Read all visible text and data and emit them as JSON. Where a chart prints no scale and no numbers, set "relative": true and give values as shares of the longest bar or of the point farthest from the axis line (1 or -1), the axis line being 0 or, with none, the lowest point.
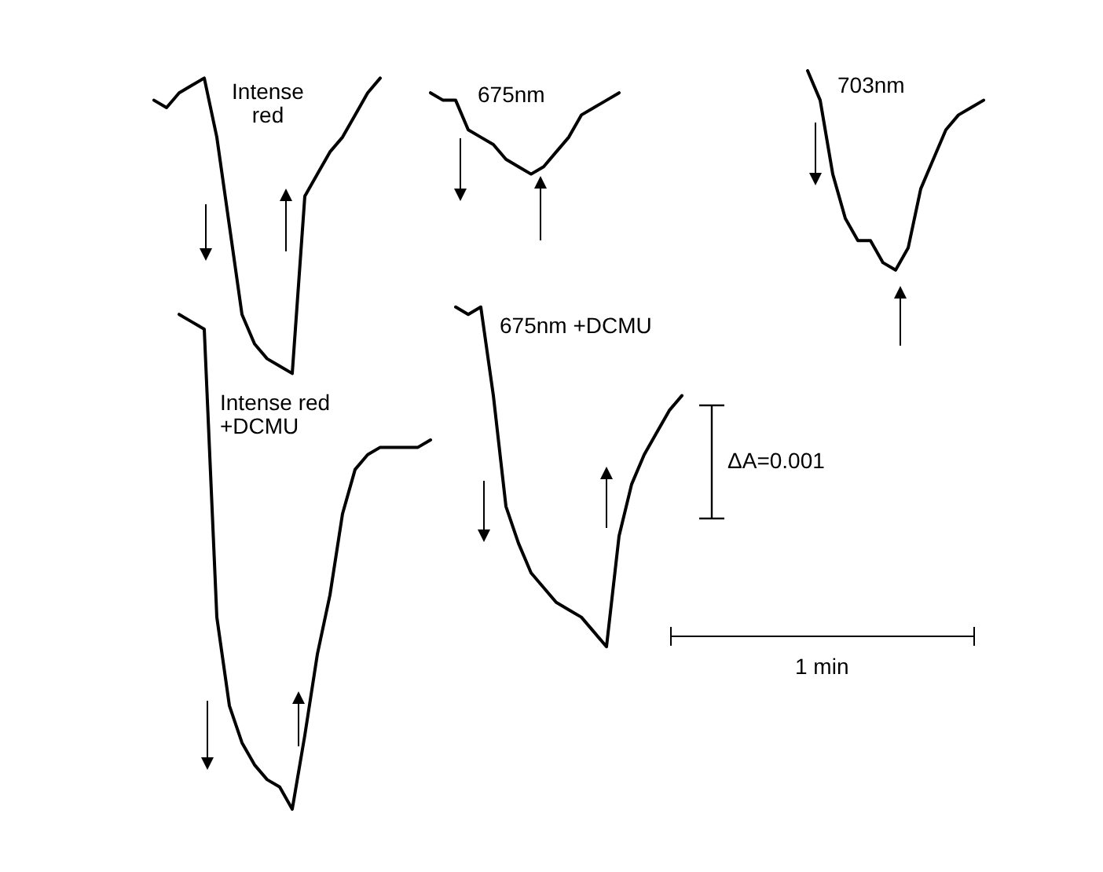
{
  "chart_data": {
    "type": "line",
    "relative": true,
    "tick_labels": false,
    "grid": false,
    "legend": false,
    "marker": "none",
    "line_style": "solid",
    "categories": [
      null,
      null,
      null,
      null,
      null,
      null,
      null,
      null,
      null,
      null,
      null,
      null,
      null,
      null,
      null,
      null,
      null,
      null,
      null,
      null,
      null,
      null,
      null,
      null,
      null,
      null,
      null,
      null,
      null,
      null,
      null,
      null,
      null,
      null,
      null,
      null,
      null,
      null,
      null,
      null,
      null,
      null,
      null,
      null,
      null,
      null,
      null,
      null,
      null,
      null,
      null,
      null,
      null,
      null,
      null,
      null,
      null,
      null,
      null,
      null,
      null,
      null,
      null,
      null,
      null,
      null,
      null,
      null,
      null
    ],
    "series": [
      {
        "name": "Intense red",
        "color": "#000000",
        "values": [
          null,
          0.96,
          0.95,
          0.97,
          0.98,
          0.99,
          0.91,
          0.79,
          0.67,
          0.63,
          0.61,
          0.6,
          0.59,
          0.83,
          0.86,
          0.89,
          0.91,
          0.94,
          0.97,
          0.99,
          null,
          null,
          null,
          null,
          null,
          null,
          null,
          null,
          null,
          null,
          null,
          null,
          null,
          null,
          null,
          null,
          null,
          null,
          null,
          null,
          null,
          null,
          null,
          null,
          null,
          null,
          null,
          null,
          null,
          null,
          null,
          null,
          null,
          null,
          null,
          null,
          null,
          null,
          null,
          null,
          null,
          null,
          null,
          null,
          null,
          null,
          null,
          null,
          null
        ]
      },
      {
        "name": "675nm",
        "color": "#000000",
        "values": [
          null,
          null,
          null,
          null,
          null,
          null,
          null,
          null,
          null,
          null,
          null,
          null,
          null,
          null,
          null,
          null,
          null,
          null,
          null,
          null,
          null,
          null,
          null,
          0.97,
          0.96,
          0.96,
          0.92,
          0.91,
          0.9,
          0.88,
          0.87,
          0.86,
          0.87,
          0.89,
          0.91,
          0.94,
          0.95,
          0.96,
          0.97,
          null,
          null,
          null,
          null,
          null,
          null,
          null,
          null,
          null,
          null,
          null,
          null,
          null,
          null,
          null,
          null,
          null,
          null,
          null,
          null,
          null,
          null,
          null,
          null,
          null,
          null,
          null,
          null,
          null,
          null
        ]
      },
      {
        "name": "703nm",
        "color": "#000000",
        "values": [
          null,
          null,
          null,
          null,
          null,
          null,
          null,
          null,
          null,
          null,
          null,
          null,
          null,
          null,
          null,
          null,
          null,
          null,
          null,
          null,
          null,
          null,
          null,
          null,
          null,
          null,
          null,
          null,
          null,
          null,
          null,
          null,
          null,
          null,
          null,
          null,
          null,
          null,
          null,
          null,
          null,
          null,
          null,
          null,
          null,
          null,
          null,
          null,
          null,
          null,
          null,
          null,
          null,
          1.0,
          0.96,
          0.86,
          0.8,
          0.77,
          0.77,
          0.74,
          0.73,
          0.76,
          0.84,
          0.88,
          0.92,
          0.94,
          0.95,
          0.96,
          null
        ]
      },
      {
        "name": "Intense red +DCMU",
        "color": "#000000",
        "values": [
          null,
          null,
          null,
          0.67,
          0.66,
          0.65,
          0.26,
          0.14,
          0.09,
          0.06,
          0.04,
          0.03,
          0,
          0.1,
          0.21,
          0.29,
          0.4,
          0.46,
          0.48,
          0.49,
          0.49,
          0.49,
          0.49,
          0.5,
          null,
          null,
          null,
          null,
          null,
          null,
          null,
          null,
          null,
          null,
          null,
          null,
          null,
          null,
          null,
          null,
          null,
          null,
          null,
          null,
          null,
          null,
          null,
          null,
          null,
          null,
          null,
          null,
          null,
          null,
          null,
          null,
          null,
          null,
          null,
          null,
          null,
          null,
          null,
          null,
          null,
          null,
          null,
          null,
          null
        ]
      },
      {
        "name": "675nm +DCMU",
        "color": "#000000",
        "values": [
          null,
          null,
          null,
          null,
          null,
          null,
          null,
          null,
          null,
          null,
          null,
          null,
          null,
          null,
          null,
          null,
          null,
          null,
          null,
          null,
          null,
          null,
          null,
          null,
          null,
          0.68,
          0.67,
          0.68,
          0.56,
          0.41,
          0.36,
          0.32,
          0.3,
          0.28,
          0.27,
          0.26,
          0.24,
          0.22,
          0.37,
          0.44,
          0.48,
          0.51,
          0.54,
          0.56,
          null,
          null,
          null,
          null,
          null,
          null,
          null,
          null,
          null,
          null,
          null,
          null,
          null,
          null,
          null,
          null,
          null,
          null,
          null,
          null,
          null,
          null,
          null,
          null,
          null
        ]
      }
    ],
    "annotations": [
      "ΔA=0.001",
      "1 min"
    ]
  }
}
